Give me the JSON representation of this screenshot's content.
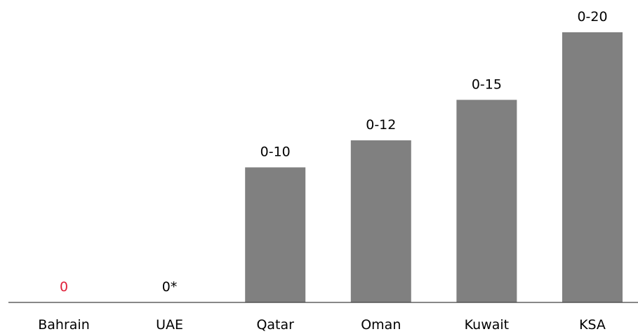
{
  "chart_data": {
    "type": "bar",
    "categories": [
      "Bahrain",
      "UAE",
      "Qatar",
      "Oman",
      "Kuwait",
      "KSA"
    ],
    "values": [
      0,
      0,
      10,
      12,
      15,
      20
    ],
    "data_labels": [
      "0",
      "0*",
      "0-10",
      "0-12",
      "0-15",
      "0-20"
    ],
    "ylim": [
      0,
      20
    ],
    "grid": false,
    "colors": {
      "bar": "#808080",
      "axis": "#404040",
      "label": "#000000",
      "highlight_label": "#e0203a"
    },
    "highlight_index": 0
  }
}
